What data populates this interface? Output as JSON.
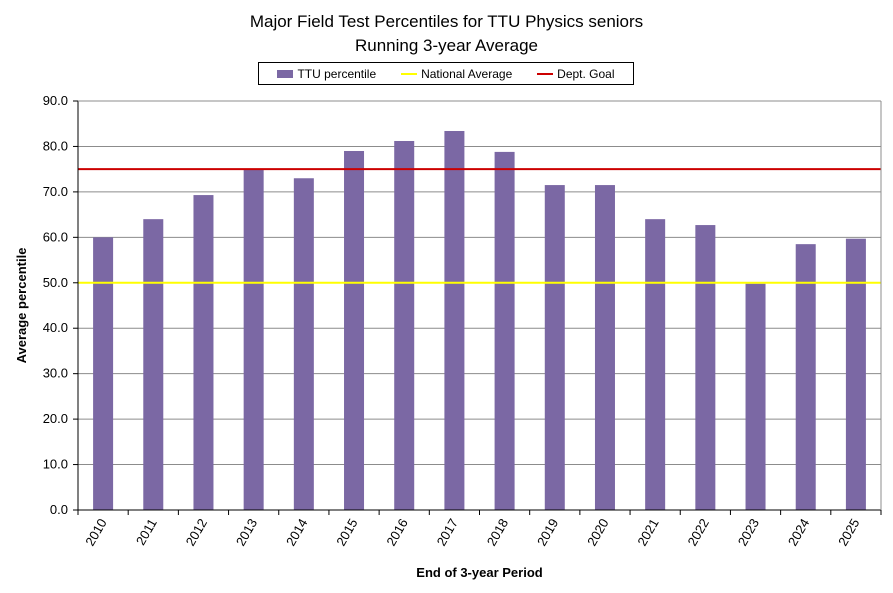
{
  "chart_data": {
    "type": "bar",
    "title_line1": "Major Field Test Percentiles for TTU Physics seniors",
    "title_line2": "Running 3-year Average",
    "xlabel": "End of 3-year Period",
    "ylabel": "Average percentile",
    "ylim": [
      0,
      90
    ],
    "yticks": [
      "0.0",
      "10.0",
      "20.0",
      "30.0",
      "40.0",
      "50.0",
      "60.0",
      "70.0",
      "80.0",
      "90.0"
    ],
    "grid": true,
    "legend_position": "top-center",
    "categories": [
      "2010",
      "2011",
      "2012",
      "2013",
      "2014",
      "2015",
      "2016",
      "2017",
      "2018",
      "2019",
      "2020",
      "2021",
      "2022",
      "2023",
      "2024",
      "2025"
    ],
    "series": [
      {
        "name": "TTU percentile",
        "color": "#7b68a4",
        "values": [
          60.0,
          64.0,
          69.3,
          75.0,
          73.0,
          79.0,
          81.2,
          83.4,
          78.8,
          71.5,
          71.5,
          64.0,
          62.7,
          49.8,
          58.5,
          59.7
        ]
      }
    ],
    "reference_lines": [
      {
        "name": "National Average",
        "value": 50.0,
        "color": "#ffff00"
      },
      {
        "name": "Dept. Goal",
        "value": 75.0,
        "color": "#cc0000"
      }
    ]
  }
}
